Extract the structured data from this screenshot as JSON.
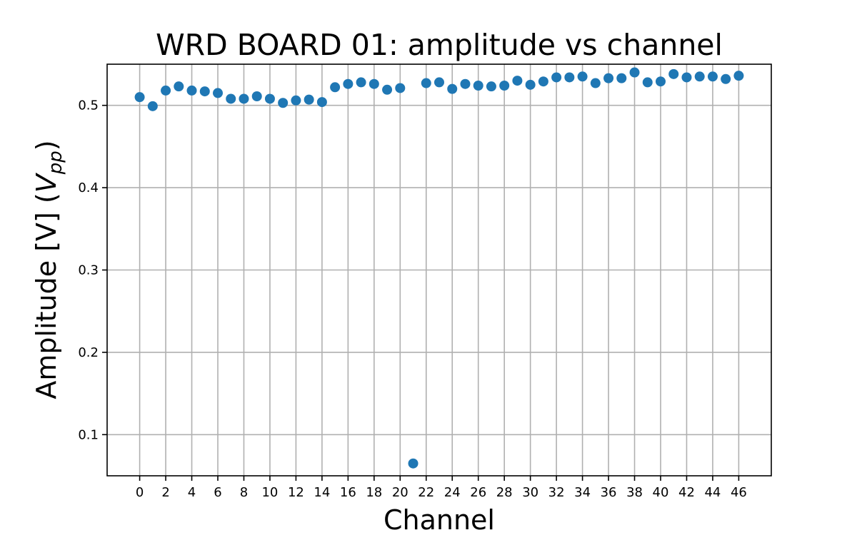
{
  "chart_data": {
    "type": "scatter",
    "title": "WRD BOARD 01: amplitude vs channel",
    "xlabel": "Channel",
    "ylabel_main": "Amplitude [V] (",
    "ylabel_var": "V",
    "ylabel_sub": "pp",
    "ylabel_close": ")",
    "xlim": [
      -2.5,
      48.5
    ],
    "ylim": [
      0.05,
      0.55
    ],
    "xticks": [
      0,
      2,
      4,
      6,
      8,
      10,
      12,
      14,
      16,
      18,
      20,
      22,
      24,
      26,
      28,
      30,
      32,
      34,
      36,
      38,
      40,
      42,
      44,
      46
    ],
    "yticks": [
      0.1,
      0.2,
      0.3,
      0.4,
      0.5
    ],
    "grid": true,
    "color": "#1f77b4",
    "series": [
      {
        "x": [
          0,
          1,
          2,
          3,
          4,
          5,
          6,
          7,
          8,
          9,
          10,
          11,
          12,
          13,
          14,
          15,
          16,
          17,
          18,
          19,
          20,
          21,
          22,
          23,
          24,
          25,
          26,
          27,
          28,
          29,
          30,
          31,
          32,
          33,
          34,
          35,
          36,
          37,
          38,
          39,
          40,
          41,
          42,
          43,
          44,
          45,
          46
        ],
        "y": [
          0.51,
          0.499,
          0.518,
          0.523,
          0.518,
          0.517,
          0.515,
          0.508,
          0.508,
          0.511,
          0.508,
          0.503,
          0.506,
          0.507,
          0.504,
          0.522,
          0.526,
          0.528,
          0.526,
          0.519,
          0.521,
          0.065,
          0.527,
          0.528,
          0.52,
          0.526,
          0.524,
          0.523,
          0.524,
          0.53,
          0.525,
          0.529,
          0.534,
          0.534,
          0.535,
          0.527,
          0.533,
          0.533,
          0.54,
          0.528,
          0.529,
          0.538,
          0.534,
          0.535,
          0.535,
          0.532,
          0.536
        ]
      }
    ]
  }
}
